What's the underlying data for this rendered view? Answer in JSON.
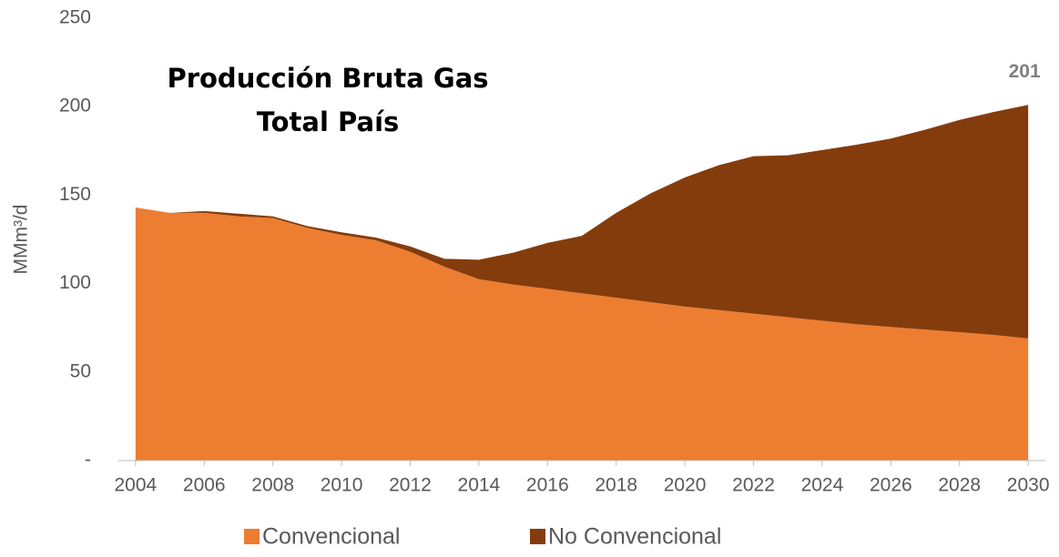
{
  "chart_data": {
    "type": "stacked_area",
    "title": [
      "Producción Bruta Gas",
      "Total País"
    ],
    "y_label": "MMm³/d",
    "annotations": [
      "201"
    ],
    "x": [
      2004,
      2005,
      2006,
      2007,
      2008,
      2009,
      2010,
      2011,
      2012,
      2013,
      2014,
      2015,
      2016,
      2017,
      2018,
      2019,
      2020,
      2021,
      2022,
      2023,
      2024,
      2025,
      2026,
      2027,
      2028,
      2029,
      2030
    ],
    "series": [
      {
        "name": "Convencional",
        "color": "#ed7d31",
        "values": [
          143,
          140,
          140,
          138,
          137,
          131.5,
          127.5,
          124.5,
          118,
          109.5,
          102.5,
          99.5,
          97,
          94.5,
          92,
          89.5,
          87,
          85,
          83,
          81,
          79,
          77,
          75.5,
          74,
          72.5,
          71,
          69
        ]
      },
      {
        "name": "No Convencional",
        "color": "#843c0c",
        "values": [
          0,
          0,
          1,
          1.5,
          1,
          1,
          1.5,
          1.5,
          3,
          4.5,
          11,
          18,
          26,
          32.5,
          48,
          61.5,
          73,
          82,
          89,
          91.5,
          96.5,
          101.5,
          106.5,
          113,
          120,
          126,
          132
        ]
      }
    ],
    "xlim": [
      2003.5,
      2030.5
    ],
    "xticks": [
      2004,
      2006,
      2008,
      2010,
      2012,
      2014,
      2016,
      2018,
      2020,
      2022,
      2024,
      2026,
      2028,
      2030
    ],
    "ylim": [
      0,
      250
    ],
    "yticks": [
      {
        "value": 0,
        "label": "-"
      },
      50,
      100,
      150,
      200,
      250
    ],
    "grid": false,
    "legend": "bottom"
  }
}
